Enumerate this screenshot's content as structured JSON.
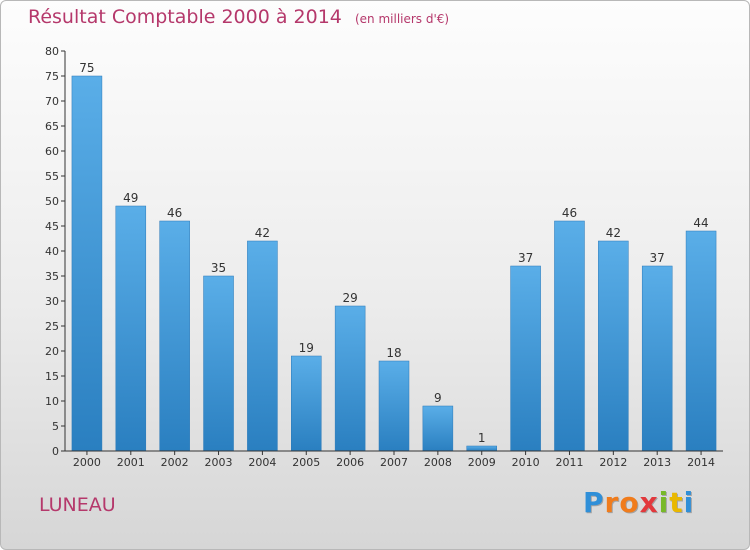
{
  "chart_data": {
    "type": "bar",
    "title": "Résultat Comptable 2000 à 2014",
    "subtitle": "(en milliers d'€)",
    "xlabel": "",
    "ylabel": "",
    "categories": [
      "2000",
      "2001",
      "2002",
      "2003",
      "2004",
      "2005",
      "2006",
      "2007",
      "2008",
      "2009",
      "2010",
      "2011",
      "2012",
      "2013",
      "2014"
    ],
    "values": [
      75,
      49,
      46,
      35,
      42,
      19,
      29,
      18,
      9,
      1,
      37,
      46,
      42,
      37,
      44
    ],
    "ylim": [
      0,
      80
    ],
    "ytick_step": 5,
    "grid": false,
    "bar_color": "#4a9fe0"
  },
  "commune": "LUNEAU",
  "brand": {
    "letters": [
      "P",
      "r",
      "o",
      "x",
      "i",
      "t",
      "i"
    ],
    "colors": [
      "#2f8fd8",
      "#f07c1c",
      "#f07c1c",
      "#e2383c",
      "#78b928",
      "#e9b800",
      "#2f8fd8"
    ]
  },
  "colors": {
    "title": "#b5386b",
    "axis": "#333333"
  }
}
